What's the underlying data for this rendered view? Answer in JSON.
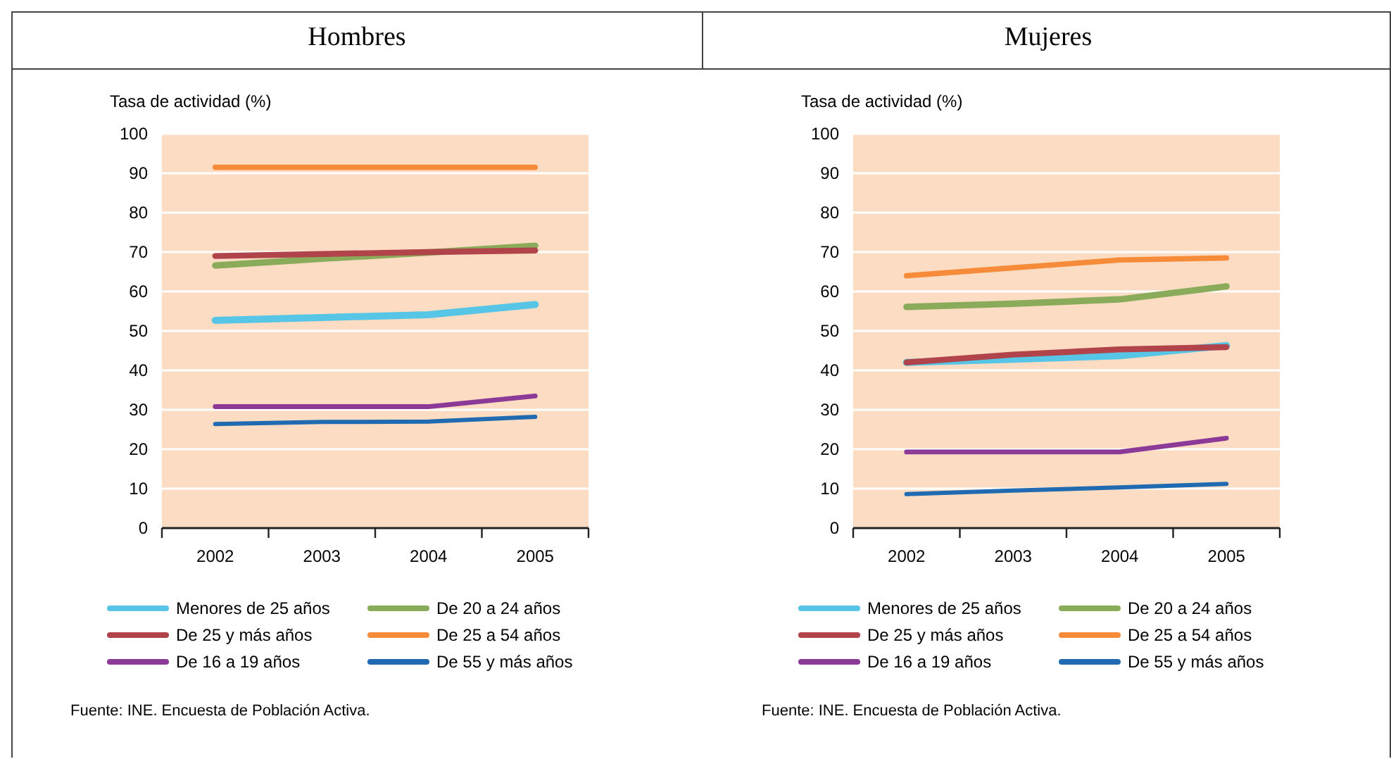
{
  "chart_data": [
    {
      "type": "line",
      "title": "Hombres",
      "ylabel": "Tasa de actividad (%)",
      "categories": [
        "2002",
        "2003",
        "2004",
        "2005"
      ],
      "ylim": [
        0,
        100
      ],
      "yticks": [
        0,
        10,
        20,
        30,
        40,
        50,
        60,
        70,
        80,
        90,
        100
      ],
      "grid": "y",
      "legend": "bottom",
      "annotations": [
        "Fuente: INE. Encuesta de Población Activa."
      ],
      "series": [
        {
          "name": "Menores de 25 años",
          "color": "#56c5e6",
          "values": [
            52.7,
            53.4,
            54.1,
            56.7
          ]
        },
        {
          "name": "De 20 a 24 años",
          "color": "#8aac5a",
          "values": [
            66.6,
            68.3,
            69.9,
            71.6
          ]
        },
        {
          "name": "De 25 y más años",
          "color": "#b0444a",
          "values": [
            69.0,
            69.5,
            70.0,
            70.4
          ]
        },
        {
          "name": "De 25 a 54 años",
          "color": "#f68c3a",
          "values": [
            91.5,
            91.5,
            91.5,
            91.5
          ]
        },
        {
          "name": "De 16 a 19 años",
          "color": "#8b3a98",
          "values": [
            30.8,
            30.8,
            30.8,
            33.5
          ]
        },
        {
          "name": "De 55 y más años",
          "color": "#1f6ab0",
          "values": [
            26.4,
            26.9,
            27.0,
            28.2
          ]
        }
      ]
    },
    {
      "type": "line",
      "title": "Mujeres",
      "ylabel": "Tasa de actividad (%)",
      "categories": [
        "2002",
        "2003",
        "2004",
        "2005"
      ],
      "ylim": [
        0,
        100
      ],
      "yticks": [
        0,
        10,
        20,
        30,
        40,
        50,
        60,
        70,
        80,
        90,
        100
      ],
      "grid": "y",
      "legend": "bottom",
      "annotations": [
        "Fuente: INE. Encuesta de Población Activa."
      ],
      "series": [
        {
          "name": "Menores de 25 años",
          "color": "#56c5e6",
          "values": [
            42.0,
            42.8,
            43.7,
            46.3
          ]
        },
        {
          "name": "De 20 a 24 años",
          "color": "#8aac5a",
          "values": [
            56.1,
            56.9,
            58.0,
            61.3
          ]
        },
        {
          "name": "De 25 y más años",
          "color": "#b0444a",
          "values": [
            42.0,
            44.0,
            45.3,
            45.9
          ]
        },
        {
          "name": "De 25 a 54 años",
          "color": "#f68c3a",
          "values": [
            64.0,
            66.0,
            68.0,
            68.5
          ]
        },
        {
          "name": "De 16 a 19 años",
          "color": "#8b3a98",
          "values": [
            19.3,
            19.3,
            19.3,
            22.8
          ]
        },
        {
          "name": "De 55 y más años",
          "color": "#1f6ab0",
          "values": [
            8.6,
            9.5,
            10.3,
            11.2
          ]
        }
      ]
    }
  ]
}
